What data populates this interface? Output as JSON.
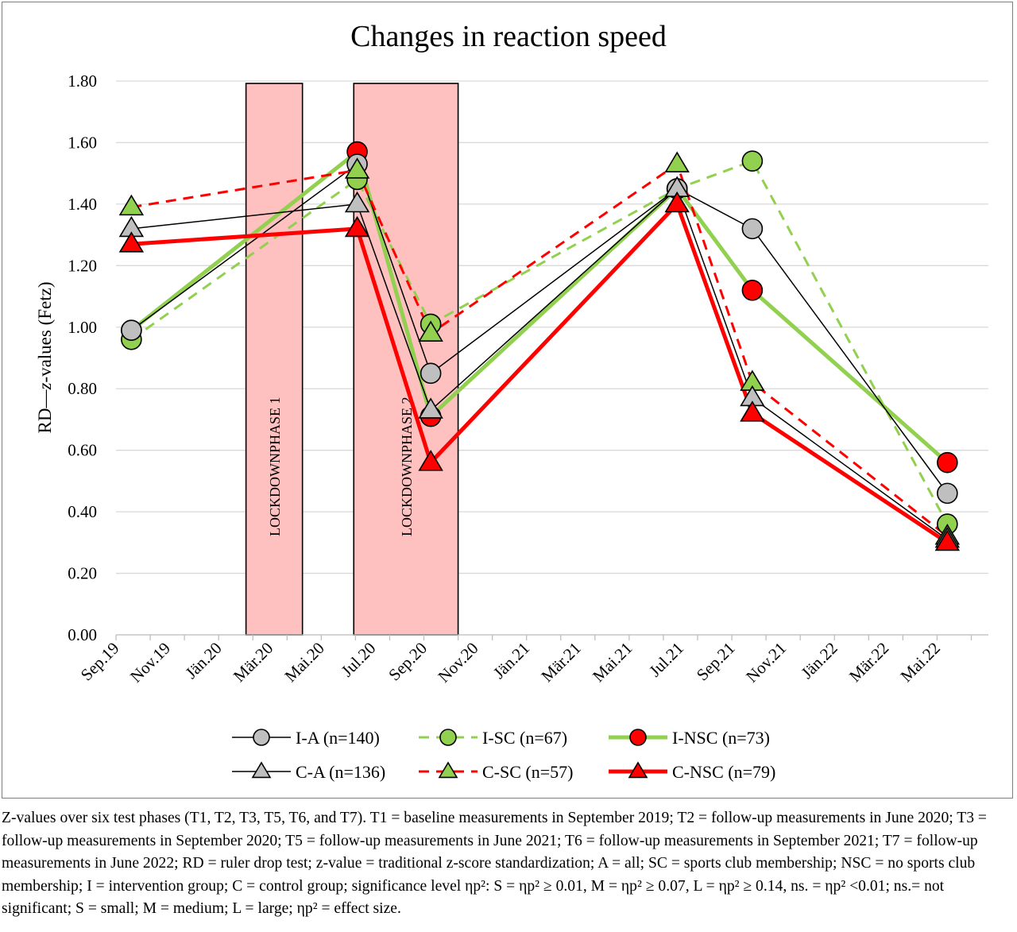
{
  "chart_data": {
    "type": "line",
    "title": "Changes in reaction speed",
    "ylabel": "RD—z-values (Fetz)",
    "xlabel": "",
    "ylim": [
      0,
      1.8
    ],
    "yticks": [
      "0.00",
      "0.20",
      "0.40",
      "0.60",
      "0.80",
      "1.00",
      "1.20",
      "1.40",
      "1.60",
      "1.80"
    ],
    "x_tick_labels": [
      "Sep.19",
      "Nov.19",
      "Jän.20",
      "Mär.20",
      "Mai.20",
      "Jul.20",
      "Sep.20",
      "Nov.20",
      "Jän.21",
      "Mär.21",
      "Mai.21",
      "Jul.21",
      "Sep.21",
      "Nov.21",
      "Jän.22",
      "Mär.22",
      "Mai.22"
    ],
    "grid": true,
    "legend_position": "bottom",
    "shaded_regions": [
      {
        "label": "LOCKDOWNPHASE 1",
        "x_start": 3.8,
        "x_end": 5.45
      },
      {
        "label": "LOCKDOWNPHASE 2",
        "x_start": 6.95,
        "x_end": 10.0
      }
    ],
    "series": [
      {
        "name": "I-A (n=140)",
        "marker": "circle",
        "line": "solid-thin",
        "line_color": "#000000",
        "fill": "#bfbfbf",
        "x": [
          0.45,
          7.05,
          9.2,
          16.4,
          18.6,
          24.3
        ],
        "y": [
          0.99,
          1.53,
          0.85,
          1.45,
          1.32,
          0.46
        ]
      },
      {
        "name": "I-SC (n=67)",
        "marker": "circle",
        "line": "dashed",
        "line_color": "#92d050",
        "fill": "#92d050",
        "x": [
          0.45,
          7.05,
          9.2,
          16.4,
          18.6,
          24.3
        ],
        "y": [
          0.96,
          1.48,
          1.01,
          1.45,
          1.54,
          0.36
        ]
      },
      {
        "name": "I-NSC (n=73)",
        "marker": "circle",
        "line": "solid-thick",
        "line_color": "#92d050",
        "fill": "#ff0000",
        "x": [
          0.45,
          7.05,
          9.2,
          16.4,
          18.6,
          24.3
        ],
        "y": [
          0.99,
          1.57,
          0.71,
          1.45,
          1.12,
          0.56
        ]
      },
      {
        "name": "C-A (n=136)",
        "marker": "triangle",
        "line": "solid-thin",
        "line_color": "#000000",
        "fill": "#bfbfbf",
        "x": [
          0.45,
          7.05,
          9.2,
          16.4,
          18.6,
          24.3
        ],
        "y": [
          1.32,
          1.4,
          0.73,
          1.45,
          0.77,
          0.31
        ]
      },
      {
        "name": "C-SC (n=57)",
        "marker": "triangle",
        "line": "dashed",
        "line_color": "#ff0000",
        "fill": "#92d050",
        "x": [
          0.45,
          7.05,
          9.2,
          16.4,
          18.6,
          24.3
        ],
        "y": [
          1.39,
          1.51,
          0.98,
          1.53,
          0.82,
          0.32
        ]
      },
      {
        "name": "C-NSC (n=79)",
        "marker": "triangle",
        "line": "solid-thick",
        "line_color": "#ff0000",
        "fill": "#ff0000",
        "x": [
          0.45,
          7.05,
          9.2,
          16.4,
          18.6,
          24.3
        ],
        "y": [
          1.27,
          1.32,
          0.56,
          1.4,
          0.72,
          0.3
        ]
      }
    ]
  },
  "caption": {
    "full_text": "Z-values over six test phases (T1, T2, T3, T5, T6, and T7). T1 = baseline measurements in September 2019; T2 = follow-up measurements in June 2020; T3 = follow-up measurements in September 2020; T5 = follow-up measurements in June 2021; T6 = follow-up measurements in September 2021; T7 = follow-up measurements in June 2022; RD = ruler drop test; z-value = traditional z-score standardization; A = all; SC = sports club membership; NSC = no sports club membership; I = intervention group; C = control group; significance level ηp²: S = ηp² ≥ 0.01, M = ηp² ≥ 0.07, L = ηp² ≥ 0.14, ns. = ηp² <0.01; ns.= not significant; S = small; M = medium; L = large; ηp² = effect size."
  }
}
